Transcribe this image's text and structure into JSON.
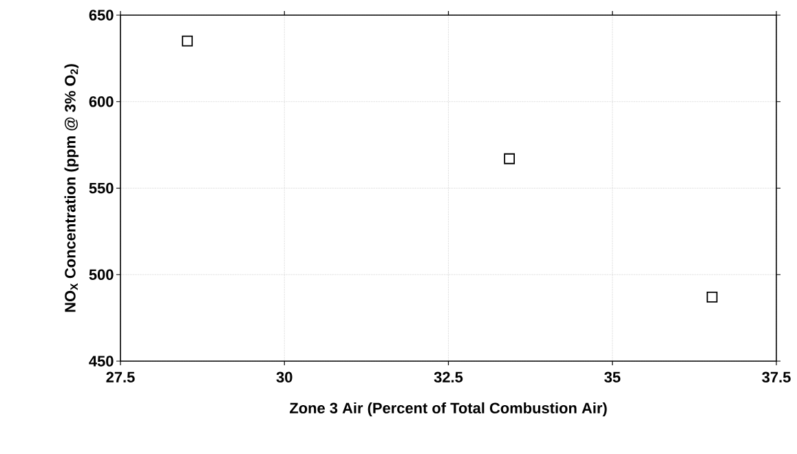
{
  "chart_data": {
    "type": "scatter",
    "xlabel": "Zone 3 Air (Percent of Total Combustion Air)",
    "ylabel": "NO$_{X}$ Concentration (ppm @ 3% O$_{2}$)",
    "x": [
      28.52,
      33.43,
      36.52
    ],
    "values": [
      635,
      567,
      487
    ],
    "color": "#000000",
    "marker": "square",
    "xlim": [
      27.5,
      37.5
    ],
    "xticks": [
      27.5,
      30,
      32.5,
      35,
      37.5
    ],
    "ylim": [
      450,
      650
    ],
    "yticks": [
      450,
      500,
      550,
      600,
      650
    ],
    "grid": true
  }
}
